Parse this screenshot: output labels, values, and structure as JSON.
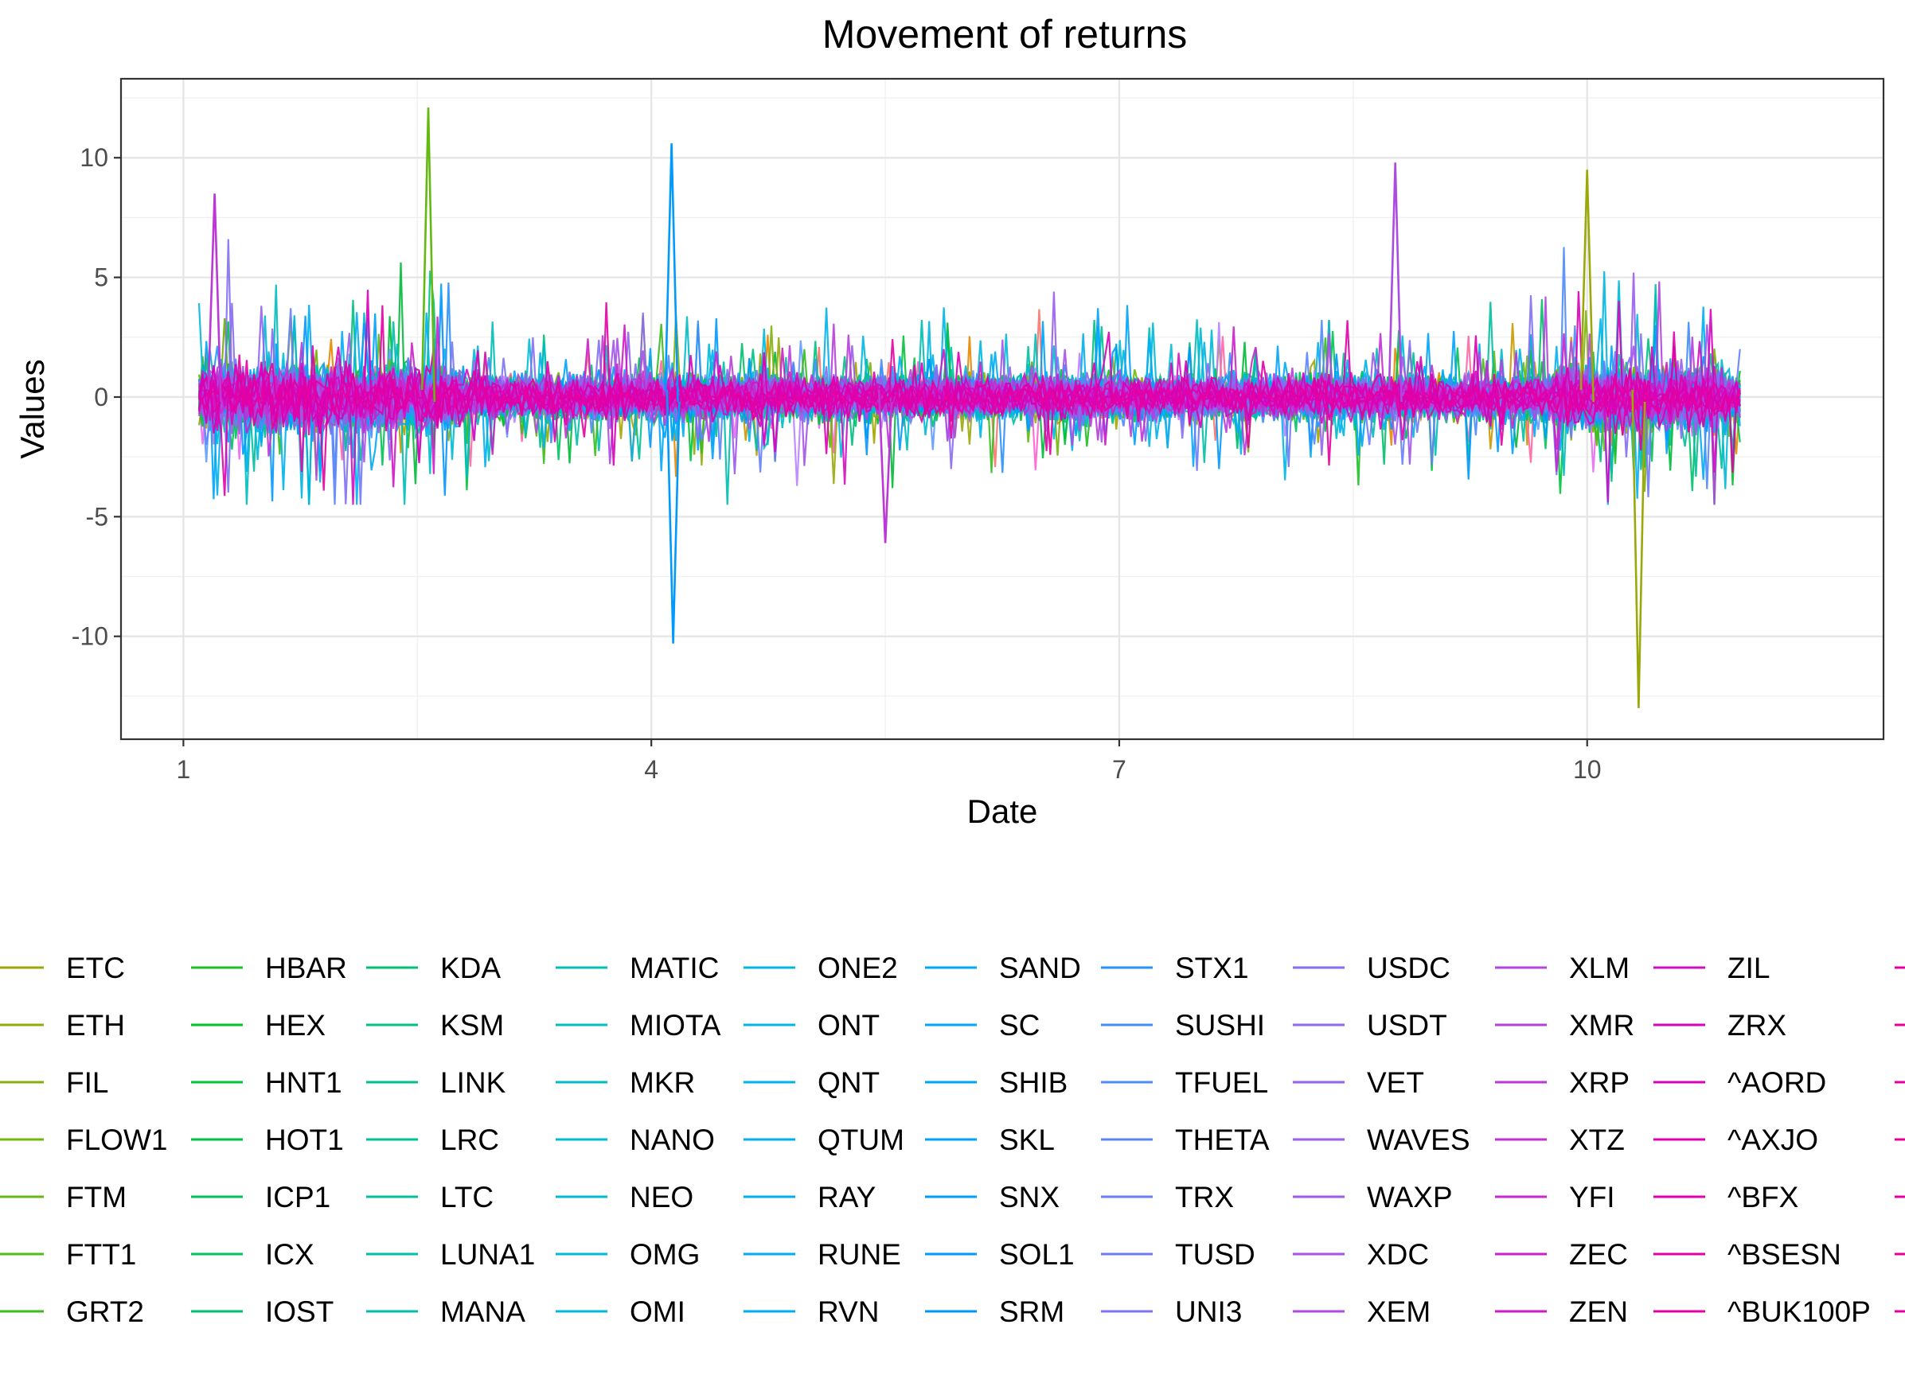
{
  "chart_data": {
    "type": "line",
    "title": "Movement of returns",
    "xlabel": "Date",
    "ylabel": "Values",
    "xlim": [
      0.6,
      11.9
    ],
    "ylim": [
      -14.3,
      13.3
    ],
    "x_ticks": [
      1,
      4,
      7,
      10
    ],
    "x_tick_labels": [
      "1",
      "4",
      "7",
      "10"
    ],
    "y_ticks": [
      -10,
      -5,
      0,
      5,
      10
    ],
    "y_tick_labels": [
      "-10",
      "-5",
      "0",
      "5",
      "10"
    ],
    "x_range": [
      1.1,
      10.98
    ],
    "grid": true,
    "legend_position": "bottom",
    "series": [
      {
        "name": "ETC",
        "color": "#9aa80a"
      },
      {
        "name": "ETH",
        "color": "#8fad0a"
      },
      {
        "name": "FIL",
        "color": "#82b10b"
      },
      {
        "name": "FLOW1",
        "color": "#74b50e"
      },
      {
        "name": "FTM",
        "color": "#64b812"
      },
      {
        "name": "FTT1",
        "color": "#51bb17"
      },
      {
        "name": "GRT2",
        "color": "#39bd1c"
      },
      {
        "name": "HBAR",
        "color": "#1ebf24"
      },
      {
        "name": "HEX",
        "color": "#00c12e"
      },
      {
        "name": "HNT1",
        "color": "#00c23a"
      },
      {
        "name": "HOT1",
        "color": "#00c247"
      },
      {
        "name": "ICP1",
        "color": "#00c253"
      },
      {
        "name": "ICX",
        "color": "#00c25f"
      },
      {
        "name": "IOST",
        "color": "#00c16b"
      },
      {
        "name": "KDA",
        "color": "#00c176"
      },
      {
        "name": "KSM",
        "color": "#00c181"
      },
      {
        "name": "LINK",
        "color": "#00c08b"
      },
      {
        "name": "LRC",
        "color": "#00c095"
      },
      {
        "name": "LTC",
        "color": "#00bf9e"
      },
      {
        "name": "LUNA1",
        "color": "#00bfa7"
      },
      {
        "name": "MANA",
        "color": "#00beaf"
      },
      {
        "name": "MATIC",
        "color": "#00beb7"
      },
      {
        "name": "MIOTA",
        "color": "#00bdbe"
      },
      {
        "name": "MKR",
        "color": "#00bcc5"
      },
      {
        "name": "NANO",
        "color": "#00bbcb"
      },
      {
        "name": "NEO",
        "color": "#00bad1"
      },
      {
        "name": "OMG",
        "color": "#00b9d7"
      },
      {
        "name": "OMI",
        "color": "#00b8dc"
      },
      {
        "name": "ONE2",
        "color": "#00b6e1"
      },
      {
        "name": "ONT",
        "color": "#00b5e5"
      },
      {
        "name": "QNT",
        "color": "#00b3e9"
      },
      {
        "name": "QTUM",
        "color": "#00b1ed"
      },
      {
        "name": "RAY",
        "color": "#00aff0"
      },
      {
        "name": "RUNE",
        "color": "#00adf3"
      },
      {
        "name": "RVN",
        "color": "#00abf5"
      },
      {
        "name": "SAND",
        "color": "#00a8f7"
      },
      {
        "name": "SC",
        "color": "#00a6f9"
      },
      {
        "name": "SHIB",
        "color": "#00a3fa"
      },
      {
        "name": "SKL",
        "color": "#00a0fb"
      },
      {
        "name": "SNX",
        "color": "#009cfc"
      },
      {
        "name": "SOL1",
        "color": "#0099fc"
      },
      {
        "name": "SRM",
        "color": "#0095fc"
      },
      {
        "name": "STX1",
        "color": "#2991fc"
      },
      {
        "name": "SUSHI",
        "color": "#3f8dfb"
      },
      {
        "name": "TFUEL",
        "color": "#4f89fa"
      },
      {
        "name": "THETA",
        "color": "#5c84f9"
      },
      {
        "name": "TRX",
        "color": "#677ff8"
      },
      {
        "name": "TUSD",
        "color": "#717af6"
      },
      {
        "name": "UNI3",
        "color": "#7a75f4"
      },
      {
        "name": "USDC",
        "color": "#836ff2"
      },
      {
        "name": "USDT",
        "color": "#8b6af0"
      },
      {
        "name": "VET",
        "color": "#9264ed"
      },
      {
        "name": "WAVES",
        "color": "#995eeb"
      },
      {
        "name": "WAXP",
        "color": "#a058e8"
      },
      {
        "name": "XDC",
        "color": "#a652e5"
      },
      {
        "name": "XEM",
        "color": "#ac4be1"
      },
      {
        "name": "XLM",
        "color": "#b245de"
      },
      {
        "name": "XMR",
        "color": "#b73eda"
      },
      {
        "name": "XRP",
        "color": "#bc37d6"
      },
      {
        "name": "XTZ",
        "color": "#c130d2"
      },
      {
        "name": "YFI",
        "color": "#c528ce"
      },
      {
        "name": "ZEC",
        "color": "#ca20c9"
      },
      {
        "name": "ZEN",
        "color": "#ce17c5"
      },
      {
        "name": "ZIL",
        "color": "#d20dc0"
      },
      {
        "name": "ZRX",
        "color": "#d602bb"
      },
      {
        "name": "^AORD",
        "color": "#d900b6"
      },
      {
        "name": "^AXJO",
        "color": "#dc00b0"
      },
      {
        "name": "^BFX",
        "color": "#df00aa"
      },
      {
        "name": "^BSESN",
        "color": "#e200a4"
      },
      {
        "name": "^BUK100P",
        "color": "#e4009e"
      }
    ],
    "extreme_points": [
      {
        "series": "FTM",
        "x": 2.57,
        "y": 12.1
      },
      {
        "series": "SOL1",
        "x": 4.13,
        "y": 10.6
      },
      {
        "series": "SOL1",
        "x": 4.14,
        "y": -10.3
      },
      {
        "series": "XEM",
        "x": 8.77,
        "y": 9.8
      },
      {
        "series": "ETC",
        "x": 10.0,
        "y": 9.5
      },
      {
        "series": "ETC",
        "x": 10.33,
        "y": -13.0
      },
      {
        "series": "XRP",
        "x": 1.2,
        "y": 8.5
      },
      {
        "series": "XRP",
        "x": 5.5,
        "y": -6.1
      }
    ],
    "background_series_colors": [
      "#f8766d",
      "#e58700",
      "#c99800",
      "#a3a500",
      "#6bb100",
      "#00ba38",
      "#00bf7d",
      "#00c0af",
      "#00bcd8",
      "#00b0f6",
      "#619cff",
      "#b983ff",
      "#e76bf3",
      "#fd61d1",
      "#ff67a4"
    ]
  }
}
